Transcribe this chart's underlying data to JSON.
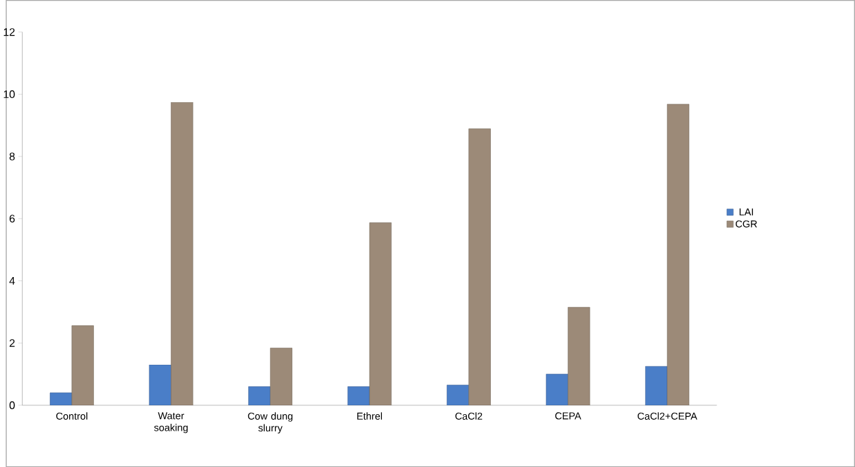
{
  "chart_data": {
    "type": "bar",
    "categories": [
      "Control",
      "Water soaking",
      "Cow dung slurry",
      "Ethrel",
      "CaCl2",
      "CEPA",
      "CaCl2+CEPA"
    ],
    "series": [
      {
        "name": "LAI",
        "color": "#4a7ec8",
        "values": [
          0.4,
          1.3,
          0.6,
          0.6,
          0.65,
          1.0,
          1.25
        ]
      },
      {
        "name": "CGR",
        "color": "#9c8a78",
        "values": [
          2.56,
          9.74,
          1.84,
          5.87,
          8.89,
          3.15,
          9.68
        ]
      }
    ],
    "ylim": [
      0,
      12
    ],
    "yticks": [
      0,
      2,
      4,
      6,
      8,
      10,
      12
    ],
    "legend": "right"
  }
}
